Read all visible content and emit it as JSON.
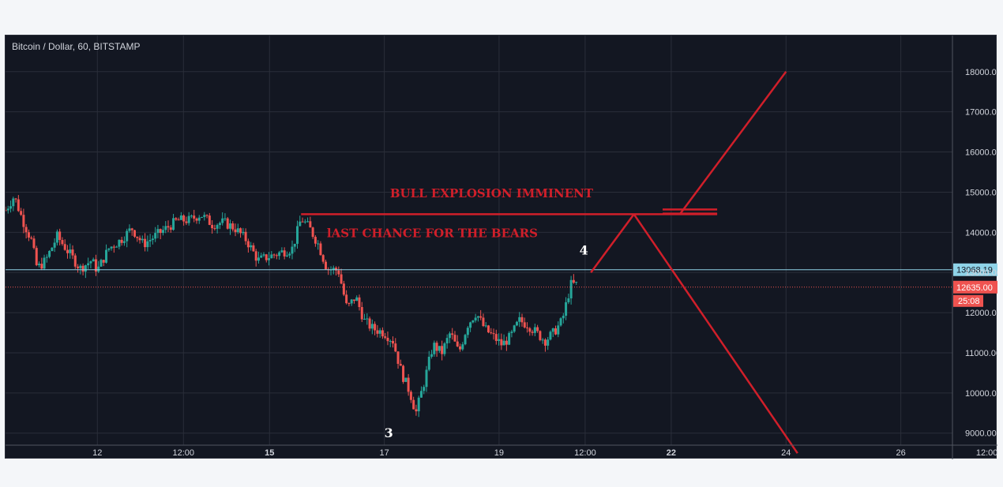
{
  "chart_title": "Bitcoin / Dollar, 60, BITSTAMP",
  "colors": {
    "background": "#131722",
    "grid": "#2a2e39",
    "up_candle": "#26a69a",
    "down_candle": "#ef5350",
    "annotation": "#d01f2a",
    "level_line": "#8fd3e8"
  },
  "chart_data": {
    "type": "candlestick",
    "title": "Bitcoin / Dollar, 60, BITSTAMP",
    "y_axis": {
      "ticks": [
        9000,
        10000,
        11000,
        12000,
        13000,
        14000,
        15000,
        16000,
        17000,
        18000
      ],
      "tick_labels": [
        "9000.00",
        "10000.00",
        "11000.00",
        "12000.00",
        "13000.00",
        "14000.00",
        "15000.00",
        "16000.00",
        "17000.00",
        "18000.00"
      ],
      "range": [
        8700,
        18900
      ],
      "position": "right"
    },
    "x_axis": {
      "tick_labels": [
        {
          "label": "12",
          "bold": false
        },
        {
          "label": "12:00",
          "bold": false
        },
        {
          "label": "15",
          "bold": true
        },
        {
          "label": "17",
          "bold": false
        },
        {
          "label": "19",
          "bold": false
        },
        {
          "label": "12:00",
          "bold": false
        },
        {
          "label": "22",
          "bold": true
        },
        {
          "label": "24",
          "bold": false
        },
        {
          "label": "26",
          "bold": false
        },
        {
          "label": "12:00",
          "bold": false
        }
      ],
      "range_days": [
        10.4,
        26.9
      ]
    },
    "grid": true,
    "price_path": [
      [
        10.4,
        14550
      ],
      [
        10.55,
        14900
      ],
      [
        10.7,
        14300
      ],
      [
        10.85,
        13800
      ],
      [
        10.95,
        13100
      ],
      [
        11.1,
        13300
      ],
      [
        11.3,
        13900
      ],
      [
        11.5,
        13500
      ],
      [
        11.7,
        13100
      ],
      [
        11.9,
        13300
      ],
      [
        12.0,
        13050
      ],
      [
        12.2,
        13600
      ],
      [
        12.4,
        13800
      ],
      [
        12.6,
        14100
      ],
      [
        12.8,
        13700
      ],
      [
        13.0,
        13900
      ],
      [
        13.2,
        14100
      ],
      [
        13.4,
        14300
      ],
      [
        13.6,
        14300
      ],
      [
        13.8,
        14450
      ],
      [
        14.0,
        14200
      ],
      [
        14.2,
        14250
      ],
      [
        14.4,
        14100
      ],
      [
        14.6,
        13800
      ],
      [
        14.8,
        13300
      ],
      [
        15.0,
        13400
      ],
      [
        15.2,
        13500
      ],
      [
        15.4,
        13600
      ],
      [
        15.55,
        14350
      ],
      [
        15.7,
        14100
      ],
      [
        15.85,
        13700
      ],
      [
        16.0,
        13100
      ],
      [
        16.2,
        13050
      ],
      [
        16.35,
        12100
      ],
      [
        16.5,
        12400
      ],
      [
        16.65,
        11800
      ],
      [
        16.8,
        11600
      ],
      [
        17.0,
        11500
      ],
      [
        17.15,
        11300
      ],
      [
        17.3,
        10500
      ],
      [
        17.45,
        10000
      ],
      [
        17.55,
        9500
      ],
      [
        17.7,
        10300
      ],
      [
        17.85,
        11200
      ],
      [
        18.0,
        11000
      ],
      [
        18.15,
        11500
      ],
      [
        18.3,
        11000
      ],
      [
        18.45,
        11700
      ],
      [
        18.6,
        12000
      ],
      [
        18.75,
        11600
      ],
      [
        18.9,
        11400
      ],
      [
        19.05,
        11200
      ],
      [
        19.2,
        11400
      ],
      [
        19.35,
        11800
      ],
      [
        19.5,
        11700
      ],
      [
        19.65,
        11500
      ],
      [
        19.8,
        11300
      ],
      [
        19.95,
        11500
      ],
      [
        20.1,
        11800
      ],
      [
        20.25,
        12700
      ],
      [
        20.35,
        12700
      ]
    ],
    "horizontal_levels": [
      {
        "price": 13068.19,
        "label": "13068.19",
        "style": "solid",
        "color": "#8fd3e8"
      },
      {
        "price": 12635.0,
        "label": "12635.00",
        "style": "dotted",
        "color": "#ef5350"
      }
    ],
    "countdown_label": "25:08",
    "annotations": {
      "headline": "BULL EXPLOSION IMMINENT",
      "subline": "lAST CHANCE FOR THE BEARS",
      "wave_labels": [
        "3",
        "4"
      ],
      "resistance_price": 14450,
      "target_price": 18000,
      "projection_points": {
        "apex": [
          21.35,
          14450
        ],
        "up_start": [
          22.15,
          14450
        ],
        "up_end": [
          24.0,
          18000
        ],
        "left_leg_start": [
          20.6,
          13000
        ],
        "down_end": [
          24.2,
          8500
        ]
      }
    }
  }
}
